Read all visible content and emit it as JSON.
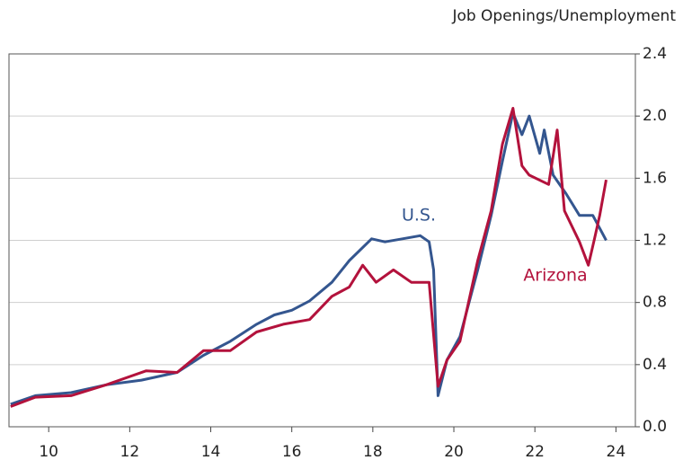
{
  "chart_data": {
    "type": "line",
    "title": "Job Openings/Unemployment",
    "xlim": [
      9.02,
      24.48
    ],
    "xticks": [
      10,
      12,
      14,
      16,
      18,
      20,
      22,
      24
    ],
    "ylim": [
      0,
      2.4
    ],
    "yticks": [
      {
        "value": 0,
        "label": "0.0"
      },
      0.4,
      0.8,
      1.2,
      1.6,
      {
        "value": 2,
        "label": "2.0"
      },
      2.4
    ],
    "grid": true,
    "series": [
      {
        "name": "U.S.",
        "color": "#34568f",
        "x": [
          9.06,
          9.67,
          10.55,
          11.42,
          12.29,
          13.17,
          13.82,
          14.48,
          15.13,
          15.57,
          16.0,
          16.44,
          16.99,
          17.42,
          17.97,
          18.3,
          18.73,
          19.17,
          19.39,
          19.5,
          19.61,
          19.83,
          20.15,
          20.59,
          20.92,
          21.2,
          21.46,
          21.68,
          21.86,
          22.12,
          22.23,
          22.45,
          22.77,
          23.1,
          23.43,
          23.76
        ],
        "values": [
          0.145,
          0.2,
          0.22,
          0.27,
          0.3,
          0.35,
          0.46,
          0.55,
          0.66,
          0.72,
          0.75,
          0.81,
          0.93,
          1.07,
          1.21,
          1.19,
          1.21,
          1.23,
          1.19,
          1.01,
          0.2,
          0.43,
          0.58,
          1.01,
          1.36,
          1.71,
          2.02,
          1.88,
          2.0,
          1.76,
          1.91,
          1.62,
          1.5,
          1.36,
          1.36,
          1.2
        ]
      },
      {
        "name": "Arizona",
        "color": "#b3123c",
        "x": [
          9.06,
          9.67,
          10.55,
          11.42,
          12.4,
          13.17,
          13.82,
          14.48,
          15.13,
          15.79,
          16.44,
          16.99,
          17.42,
          17.75,
          18.08,
          18.51,
          18.95,
          19.39,
          19.61,
          19.83,
          20.15,
          20.59,
          20.92,
          21.2,
          21.46,
          21.68,
          21.86,
          22.34,
          22.55,
          22.73,
          23.1,
          23.32,
          23.47,
          23.6,
          23.76
        ],
        "values": [
          0.13,
          0.19,
          0.2,
          0.27,
          0.36,
          0.35,
          0.49,
          0.49,
          0.61,
          0.66,
          0.69,
          0.84,
          0.9,
          1.04,
          0.93,
          1.01,
          0.93,
          0.93,
          0.26,
          0.43,
          0.55,
          1.07,
          1.39,
          1.82,
          2.05,
          1.68,
          1.62,
          1.56,
          1.91,
          1.39,
          1.19,
          1.04,
          1.21,
          1.36,
          1.59
        ]
      }
    ]
  }
}
